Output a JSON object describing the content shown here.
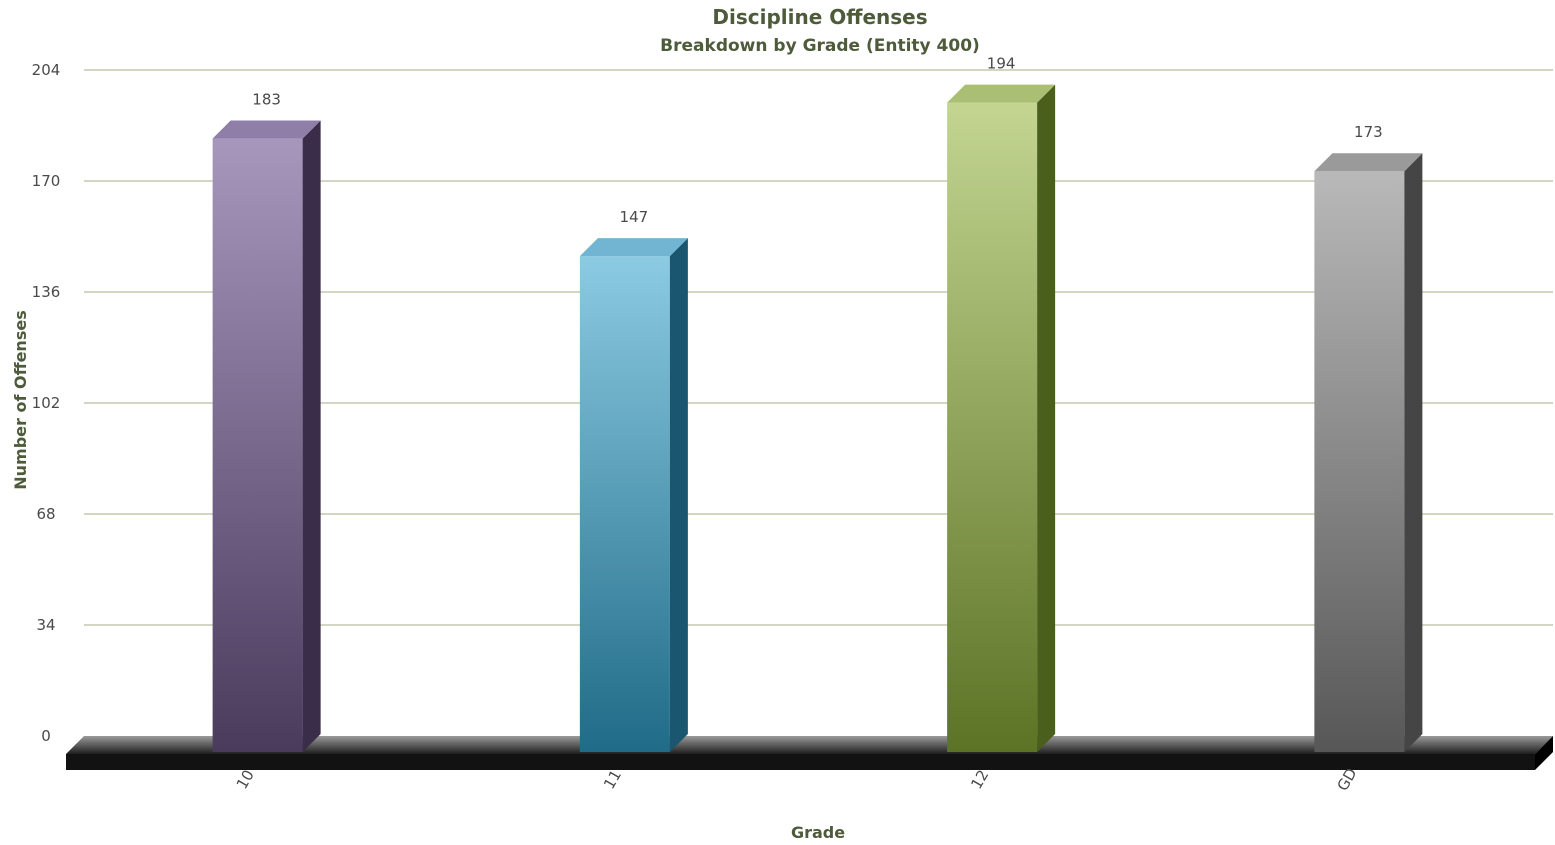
{
  "chart_data": {
    "type": "bar",
    "title": "Discipline Offenses",
    "subtitle": "Breakdown by Grade (Entity 400)",
    "xlabel": "Grade",
    "ylabel": "Number of Offenses",
    "categories": [
      "10",
      "11",
      "12",
      "GD"
    ],
    "values": [
      183,
      147,
      194,
      173
    ],
    "data_labels": [
      "183",
      "147",
      "194",
      "173"
    ],
    "ylim": [
      0,
      204
    ],
    "yticks": [
      0,
      34,
      68,
      102,
      136,
      170,
      204
    ],
    "ytick_labels": [
      "0",
      "34",
      "68",
      "102",
      "136",
      "170",
      "204"
    ],
    "grid": true,
    "legend": "none",
    "style": "3d-column",
    "colors": [
      {
        "front_top": "#a797bd",
        "front_bottom": "#4a3a5c",
        "side": "#3a2d4a",
        "top": "#8f7fa8"
      },
      {
        "front_top": "#8ccbe2",
        "front_bottom": "#206b88",
        "side": "#1a5670",
        "top": "#72b5d2"
      },
      {
        "front_top": "#c3d591",
        "front_bottom": "#5c7325",
        "side": "#4b5f1d",
        "top": "#aabf73"
      },
      {
        "front_top": "#b9b9b9",
        "front_bottom": "#575757",
        "side": "#454545",
        "top": "#9a9a9a"
      }
    ],
    "gridline_color": "#b7be9f",
    "floor_color": "#1a1a1a"
  }
}
